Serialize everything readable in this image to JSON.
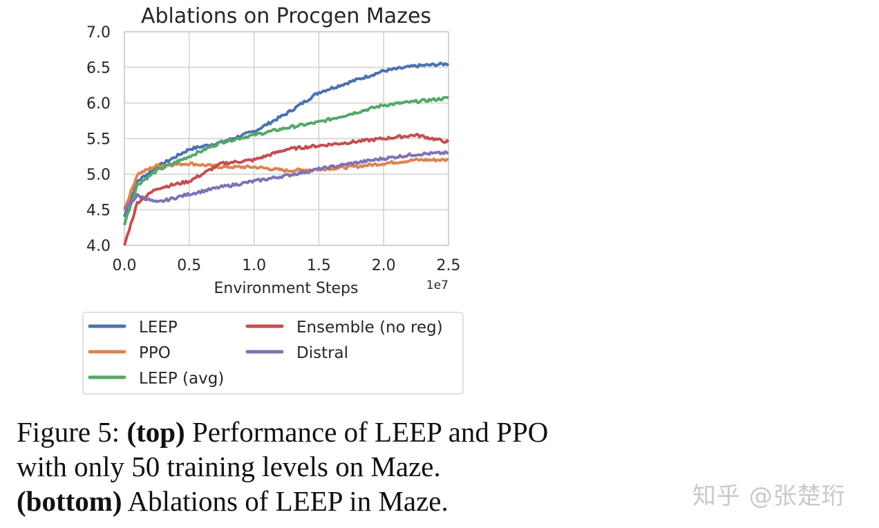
{
  "chart_data": {
    "type": "line",
    "title": "Ablations on Procgen Mazes",
    "xlabel": "Environment Steps",
    "x_offset_label": "1e7",
    "ylabel": "",
    "xlim": [
      0,
      2.5
    ],
    "ylim": [
      4.0,
      7.0
    ],
    "xticks": [
      "0.0",
      "0.5",
      "1.0",
      "1.5",
      "2.0",
      "2.5"
    ],
    "yticks": [
      "4.0",
      "4.5",
      "5.0",
      "5.5",
      "6.0",
      "6.5",
      "7.0"
    ],
    "grid": true,
    "legend_placement": "below",
    "x": [
      0,
      0.1,
      0.25,
      0.5,
      0.75,
      1.0,
      1.25,
      1.5,
      1.75,
      2.0,
      2.25,
      2.5
    ],
    "series": [
      {
        "name": "LEEP",
        "color": "#4c72b0",
        "values": [
          4.4,
          4.9,
          5.1,
          5.35,
          5.45,
          5.6,
          5.85,
          6.15,
          6.3,
          6.45,
          6.52,
          6.55
        ]
      },
      {
        "name": "PPO",
        "color": "#dd8452",
        "values": [
          4.5,
          5.0,
          5.12,
          5.15,
          5.1,
          5.1,
          5.05,
          5.07,
          5.1,
          5.15,
          5.2,
          5.2
        ]
      },
      {
        "name": "LEEP (avg)",
        "color": "#55a868",
        "values": [
          4.3,
          4.85,
          5.05,
          5.25,
          5.45,
          5.55,
          5.65,
          5.73,
          5.85,
          5.97,
          6.02,
          6.07
        ]
      },
      {
        "name": "Ensemble (no reg)",
        "color": "#c44e52",
        "values": [
          4.0,
          4.6,
          4.8,
          4.9,
          5.15,
          5.2,
          5.35,
          5.4,
          5.45,
          5.5,
          5.55,
          5.45
        ]
      },
      {
        "name": "Distral",
        "color": "#8172b3",
        "values": [
          4.5,
          4.7,
          4.6,
          4.72,
          4.82,
          4.9,
          4.98,
          5.07,
          5.15,
          5.22,
          5.28,
          5.3
        ]
      }
    ]
  },
  "caption": {
    "figure_label": "Figure 5: ",
    "part1_bold": "(top)",
    "part1_text": " Performance of LEEP and PPO with only 50 training levels on Maze.",
    "part2_bold": "(bottom)",
    "part2_text": " Ablations of LEEP in Maze."
  },
  "watermark": "知乎 @张楚珩"
}
